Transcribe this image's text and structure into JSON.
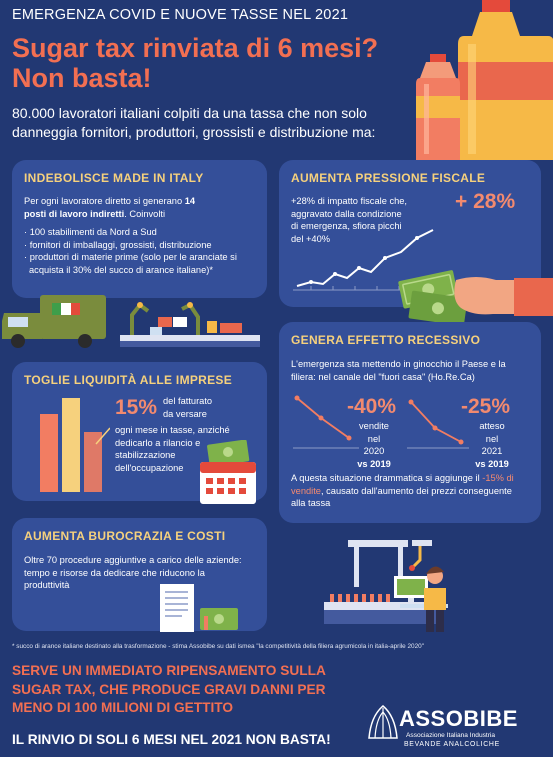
{
  "header": {
    "top_label": "EMERGENZA COVID E NUOVE TASSE NEL 2021",
    "headline_line1": "Sugar tax rinviata di 6 mesi?",
    "headline_line2": "Non basta!",
    "intro": "80.000 lavoratori italiani colpiti da una tassa che non solo danneggia fornitori, produttori, grossisti e distribuzione ma:"
  },
  "panel_made_in_italy": {
    "title": "INDEBOLISCE MADE IN ITALY",
    "lead_before": "Per ogni lavoratore diretto si generano ",
    "lead_bold": "14 posti di lavoro indiretti",
    "lead_after": ". Coinvolti",
    "bullets": [
      "100 stabilimenti da Nord a Sud",
      "fornitori di imballaggi, grossisti, distribuzione",
      "produttori di materie prime (solo per le aranciate si acquista il 30% del succo di arance italiane)*"
    ]
  },
  "panel_pressione": {
    "title": "AUMENTA PRESSIONE FISCALE",
    "text": "+28% di impatto fiscale che, aggravato dalla condizione di emergenza, sfiora picchi del +40%",
    "big_value": "+ 28%"
  },
  "panel_liquidita": {
    "title": "TOGLIE LIQUIDITÀ ALLE IMPRESE",
    "percent": "15%",
    "percent_label": "del fatturato da versare",
    "text": "ogni mese in tasse, anziché dedicarlo a rilancio e stabilizzazione dell'occupazione"
  },
  "panel_recessivo": {
    "title": "GENERA EFFETTO RECESSIVO",
    "text": "L'emergenza sta mettendo in ginocchio il Paese e la filiera: nel canale del \"fuori casa\" (Ho.Re.Ca)",
    "stat1_value": "-40%",
    "stat1_label_line1": "vendite",
    "stat1_label_line2": "nel 2020",
    "stat1_label_line3": "vs 2019",
    "stat2_value": "-25%",
    "stat2_label_line1": "atteso",
    "stat2_label_line2": "nel 2021",
    "stat2_label_line3": "vs 2019",
    "bottom_before": "A questa situazione drammatica si aggiunge il ",
    "bottom_accent": "-15% di vendite",
    "bottom_after": ", causato dall'aumento dei prezzi conseguente alla tassa"
  },
  "panel_burocrazia": {
    "title": "AUMENTA BUROCRAZIA E COSTI",
    "text": "Oltre 70 procedure aggiuntive a carico delle aziende: tempo e risorse da dedicare che riducono la produttività"
  },
  "footnote": "* succo di arance italiane destinato alla trasformazione - stima Assobibe su dati ismea \"la competitività della filiera agrumicola in italia-aprile 2020\"",
  "closing": {
    "line1": "SERVE UN IMMEDIATO RIPENSAMENTO SULLA SUGAR TAX, CHE PRODUCE GRAVI DANNI PER MENO DI 100 MILIONI DI GETTITO",
    "line2": "IL RINVIO DI SOLI 6 MESI NEL 2021 NON BASTA!"
  },
  "logo": {
    "name": "ASSOBIBE",
    "sub1": "Associazione Italiana Industria",
    "sub2": "BEVANDE ANALCOLICHE"
  },
  "colors": {
    "background": "#223873",
    "panel": "#344f99",
    "title_yellow": "#f6d17d",
    "accent_orange": "#f26f52"
  }
}
